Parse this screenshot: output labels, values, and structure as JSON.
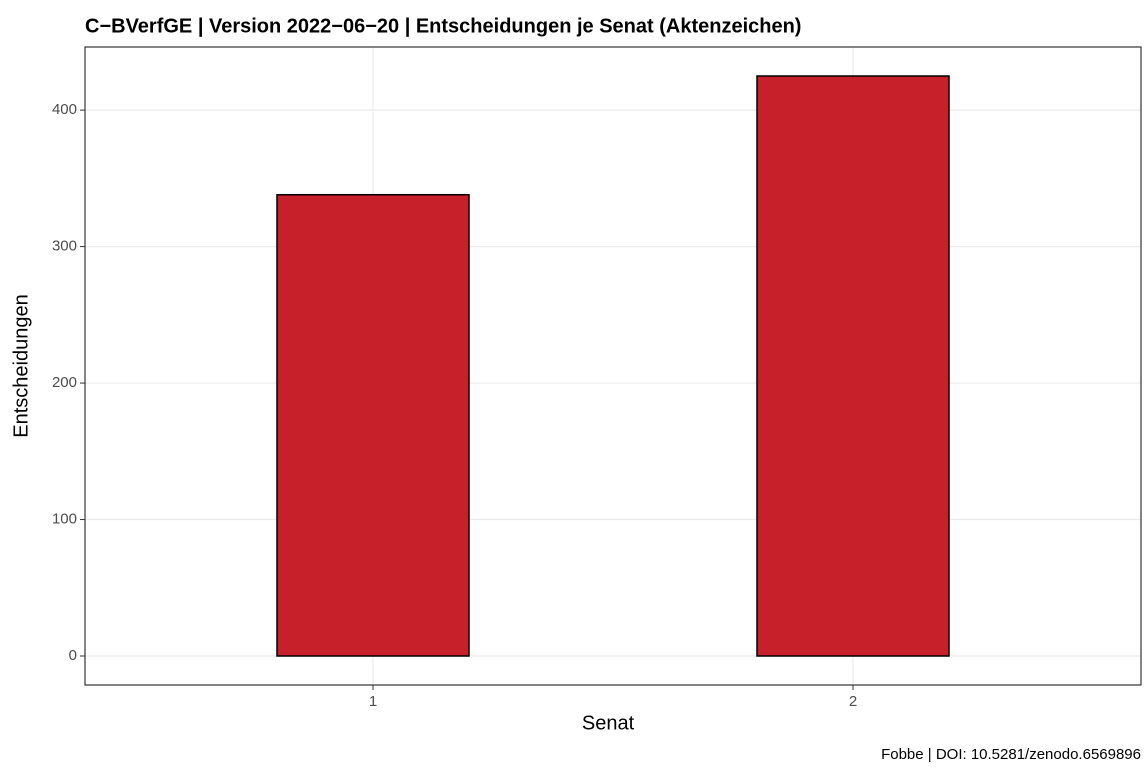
{
  "chart_data": {
    "type": "bar",
    "title": "C−BVerfGE | Version 2022−06−20 | Entscheidungen je Senat (Aktenzeichen)",
    "x_label": "Senat",
    "y_label": "Entscheidungen",
    "caption": "Fobbe | DOI: 10.5281/zenodo.6569896",
    "categories": [
      "1",
      "2"
    ],
    "values": [
      338,
      425
    ],
    "color": "#c8202a",
    "ylim": [
      -21.25,
      446.25
    ],
    "yticks": [
      0,
      100,
      200,
      300,
      400
    ],
    "grid": true
  }
}
